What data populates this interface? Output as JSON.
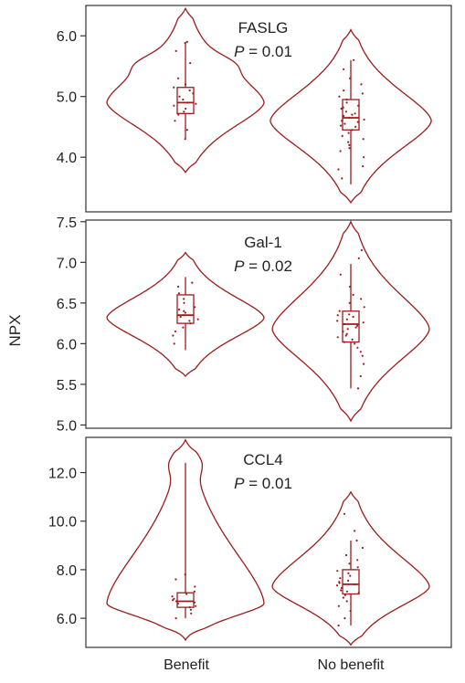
{
  "figure": {
    "ylabel": "NPX",
    "categories": [
      "Benefit",
      "No benefit"
    ],
    "colors": {
      "violin": "#9b1c1c",
      "points": "#9b1c1c",
      "frame": "#333333"
    }
  },
  "chart_data": [
    {
      "type": "violin",
      "title": "FASLG",
      "p_label": "P",
      "p_value": " = 0.01",
      "ylabel": "NPX",
      "categories": [
        "Benefit",
        "No benefit"
      ],
      "ylim": [
        3.1,
        6.5
      ],
      "yticks": [
        4.0,
        5.0,
        6.0
      ],
      "yticklabels": [
        "4.0",
        "5.0",
        "6.0"
      ],
      "grid": false,
      "violins": [
        {
          "category": "Benefit",
          "min": 3.75,
          "max": 6.45,
          "bulge_center": 4.9,
          "bulge_width": 0.8,
          "upper_bump": 5.55,
          "upper_bump_width": 0.14,
          "lower_taper": 4.0
        },
        {
          "category": "No benefit",
          "min": 3.25,
          "max": 6.1,
          "bulge_center": 4.6,
          "bulge_width": 0.82,
          "upper_bump": 0,
          "upper_bump_width": 0,
          "lower_taper": 3.8
        }
      ],
      "boxes": [
        {
          "category": "Benefit",
          "whisker_low": 4.3,
          "q1": 4.72,
          "median": 4.9,
          "q3": 5.15,
          "whisker_high": 5.9
        },
        {
          "category": "No benefit",
          "whisker_low": 3.55,
          "q1": 4.45,
          "median": 4.65,
          "q3": 4.95,
          "whisker_high": 5.6
        }
      ],
      "points": [
        {
          "category": "Benefit",
          "values": [
            4.3,
            4.45,
            4.6,
            4.7,
            4.75,
            4.8,
            4.85,
            4.88,
            4.9,
            4.95,
            5.0,
            5.05,
            5.1,
            5.15,
            5.2,
            5.3,
            5.55,
            5.75,
            5.9,
            5.88
          ]
        },
        {
          "category": "No benefit",
          "values": [
            3.65,
            3.8,
            3.85,
            4.0,
            4.1,
            4.2,
            4.3,
            4.35,
            4.4,
            4.45,
            4.5,
            4.55,
            4.6,
            4.62,
            4.65,
            4.68,
            4.7,
            4.75,
            4.8,
            4.85,
            4.9,
            4.95,
            5.0,
            5.05,
            5.1,
            5.2,
            5.3,
            5.45,
            5.6,
            4.25,
            4.58,
            4.72,
            4.52,
            4.82,
            4.15
          ]
        }
      ]
    },
    {
      "type": "violin",
      "title": "Gal-1",
      "p_label": "P",
      "p_value": " = 0.02",
      "ylabel": "NPX",
      "categories": [
        "Benefit",
        "No benefit"
      ],
      "ylim": [
        4.96,
        7.52
      ],
      "yticks": [
        5.0,
        5.5,
        6.0,
        6.5,
        7.0,
        7.5
      ],
      "yticklabels": [
        "5.0",
        "5.5",
        "6.0",
        "6.5",
        "7.0",
        "7.5"
      ],
      "grid": false,
      "violins": [
        {
          "category": "Benefit",
          "min": 5.6,
          "max": 7.12,
          "bulge_center": 6.32,
          "bulge_width": 0.8,
          "upper_bump": 0,
          "upper_bump_width": 0,
          "lower_taper": 5.9
        },
        {
          "category": "No benefit",
          "min": 5.05,
          "max": 7.5,
          "bulge_center": 6.18,
          "bulge_width": 0.8,
          "upper_bump": 0,
          "upper_bump_width": 0,
          "lower_taper": 5.5
        }
      ],
      "boxes": [
        {
          "category": "Benefit",
          "whisker_low": 5.92,
          "q1": 6.25,
          "median": 6.35,
          "q3": 6.6,
          "whisker_high": 6.82
        },
        {
          "category": "No benefit",
          "whisker_low": 5.45,
          "q1": 6.02,
          "median": 6.24,
          "q3": 6.4,
          "whisker_high": 6.98
        }
      ],
      "points": [
        {
          "category": "Benefit",
          "values": [
            6.0,
            6.1,
            6.2,
            6.25,
            6.28,
            6.3,
            6.33,
            6.35,
            6.38,
            6.4,
            6.45,
            6.5,
            6.55,
            6.62,
            6.7,
            6.75,
            6.15,
            6.42
          ]
        },
        {
          "category": "No benefit",
          "values": [
            5.45,
            5.6,
            5.75,
            5.85,
            5.9,
            5.95,
            6.0,
            6.05,
            6.08,
            6.1,
            6.12,
            6.15,
            6.18,
            6.2,
            6.22,
            6.24,
            6.26,
            6.28,
            6.3,
            6.33,
            6.36,
            6.4,
            6.45,
            6.5,
            6.55,
            6.6,
            6.7,
            6.85,
            7.05,
            7.15,
            6.02,
            6.35
          ]
        }
      ]
    },
    {
      "type": "violin",
      "title": "CCL4",
      "p_label": "P",
      "p_value": " = 0.01",
      "ylabel": "NPX",
      "categories": [
        "Benefit",
        "No benefit"
      ],
      "ylim": [
        4.8,
        13.45
      ],
      "yticks": [
        6.0,
        8.0,
        10.0,
        12.0
      ],
      "yticklabels": [
        "6.0",
        "8.0",
        "10.0",
        "12.0"
      ],
      "grid": false,
      "violins": [
        {
          "category": "Benefit",
          "min": 5.1,
          "max": 13.35,
          "bulge_center": 6.6,
          "bulge_width": 0.8,
          "upper_bump": 12.4,
          "upper_bump_width": 0.1,
          "lower_taper": 5.9
        },
        {
          "category": "No benefit",
          "min": 4.9,
          "max": 11.2,
          "bulge_center": 7.3,
          "bulge_width": 0.8,
          "upper_bump": 0,
          "upper_bump_width": 0,
          "lower_taper": 6.3
        }
      ],
      "boxes": [
        {
          "category": "Benefit",
          "whisker_low": 6.0,
          "q1": 6.45,
          "median": 6.7,
          "q3": 7.05,
          "whisker_high": 12.4
        },
        {
          "category": "No benefit",
          "whisker_low": 5.7,
          "q1": 7.0,
          "median": 7.4,
          "q3": 8.0,
          "whisker_high": 9.2
        }
      ],
      "points": [
        {
          "category": "Benefit",
          "values": [
            6.0,
            6.2,
            6.35,
            6.45,
            6.5,
            6.6,
            6.65,
            6.7,
            6.75,
            6.8,
            6.9,
            7.0,
            7.1,
            7.3,
            7.6,
            7.8
          ]
        },
        {
          "category": "No benefit",
          "values": [
            5.7,
            6.0,
            6.3,
            6.5,
            6.7,
            6.85,
            6.95,
            7.05,
            7.15,
            7.25,
            7.35,
            7.4,
            7.45,
            7.55,
            7.65,
            7.75,
            7.85,
            7.95,
            8.1,
            8.25,
            8.4,
            8.6,
            8.9,
            9.2,
            9.6,
            10.3,
            7.1,
            7.5
          ]
        }
      ]
    }
  ]
}
